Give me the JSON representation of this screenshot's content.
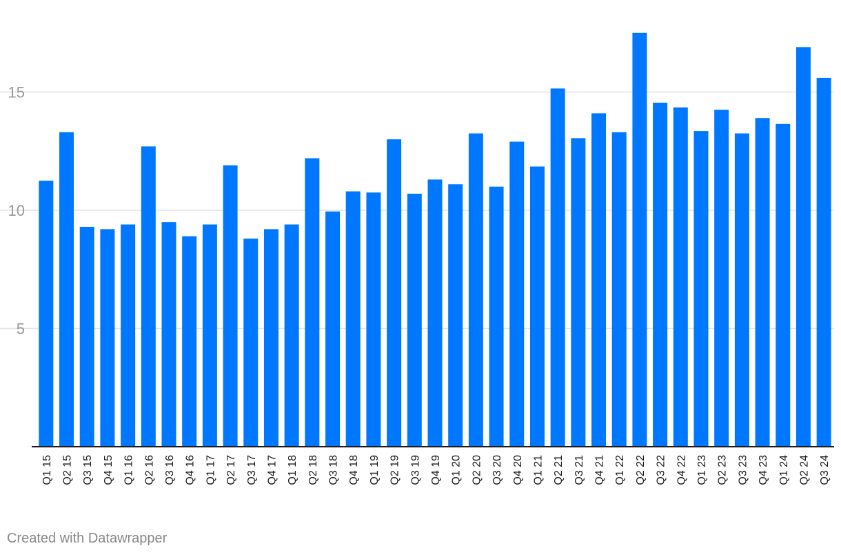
{
  "credit_text": "Created with Datawrapper",
  "colors": {
    "bar": "#0077ff",
    "gridline": "#e3e3e3",
    "baseline": "#1a1a1a",
    "tick_label": "#999999",
    "category_label": "#1a1a1a"
  },
  "chart_data": {
    "type": "bar",
    "title": "",
    "xlabel": "",
    "ylabel": "",
    "ylim": [
      0,
      18.5
    ],
    "yticks": [
      5,
      10,
      15
    ],
    "grid": true,
    "categories": [
      "Q1 15",
      "Q2 15",
      "Q3 15",
      "Q4 15",
      "Q1 16",
      "Q2 16",
      "Q3 16",
      "Q4 16",
      "Q1 17",
      "Q2 17",
      "Q3 17",
      "Q4 17",
      "Q1 18",
      "Q2 18",
      "Q3 18",
      "Q4 18",
      "Q1 19",
      "Q2 19",
      "Q3 19",
      "Q4 19",
      "Q1 20",
      "Q2 20",
      "Q3 20",
      "Q4 20",
      "Q1 21",
      "Q2 21",
      "Q3 21",
      "Q4 21",
      "Q1 22",
      "Q2 22",
      "Q3 22",
      "Q4 22",
      "Q1 23",
      "Q2 23",
      "Q3 23",
      "Q4 23",
      "Q1 24",
      "Q2 24",
      "Q3 24"
    ],
    "values": [
      11.25,
      13.3,
      9.3,
      9.2,
      9.4,
      12.7,
      9.5,
      8.9,
      9.4,
      11.9,
      8.8,
      9.2,
      9.4,
      12.2,
      9.95,
      10.8,
      10.75,
      13.0,
      10.7,
      11.3,
      11.1,
      13.25,
      11.0,
      12.9,
      11.85,
      15.15,
      13.05,
      14.1,
      13.3,
      17.5,
      14.55,
      14.35,
      13.35,
      14.25,
      13.25,
      13.9,
      13.65,
      16.9,
      15.6
    ]
  }
}
